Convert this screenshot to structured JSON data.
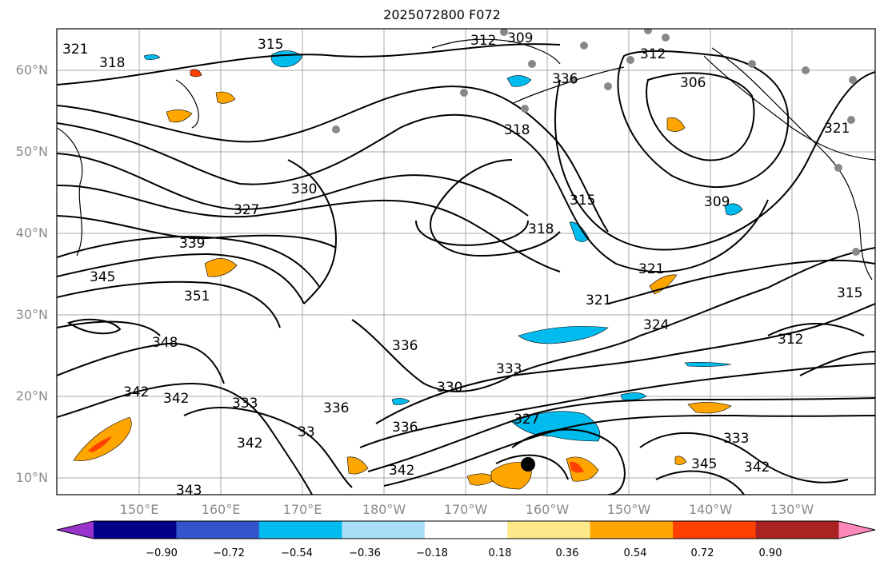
{
  "title": "2025072800 F072",
  "lat_labels": [
    "60°N",
    "50°N",
    "40°N",
    "30°N",
    "20°N",
    "10°N"
  ],
  "lon_labels": [
    "150°E",
    "160°E",
    "170°E",
    "180°W",
    "170°W",
    "160°W",
    "150°W",
    "140°W",
    "130°W"
  ],
  "contour_labels": [
    "321",
    "318",
    "315",
    "312",
    "309",
    "312",
    "306",
    "321",
    "318",
    "315",
    "309",
    "330",
    "327",
    "339",
    "345",
    "351",
    "348",
    "342",
    "342",
    "333",
    "342",
    "336",
    "336",
    "330",
    "333",
    "318",
    "321",
    "321",
    "324",
    "312",
    "315",
    "327",
    "336",
    "342",
    "343",
    "345",
    "342",
    "333",
    "33",
    "336"
  ],
  "colorbar": {
    "tick_labels": [
      "−0.90",
      "−0.72",
      "−0.54",
      "−0.36",
      "−0.18",
      "0.18",
      "0.36",
      "0.54",
      "0.72",
      "0.90"
    ],
    "colors": [
      "#9933cc",
      "#000088",
      "#3355cc",
      "#00bbee",
      "#aaddf8",
      "#ffffff",
      "#fde98a",
      "#ffa500",
      "#ff4000",
      "#aa2222",
      "#ff88bb"
    ]
  },
  "colors": {
    "contour": "#000000",
    "coast": "#000000",
    "grid": "#aaaaaa",
    "station": "#888888",
    "storm_center": "#000000"
  }
}
